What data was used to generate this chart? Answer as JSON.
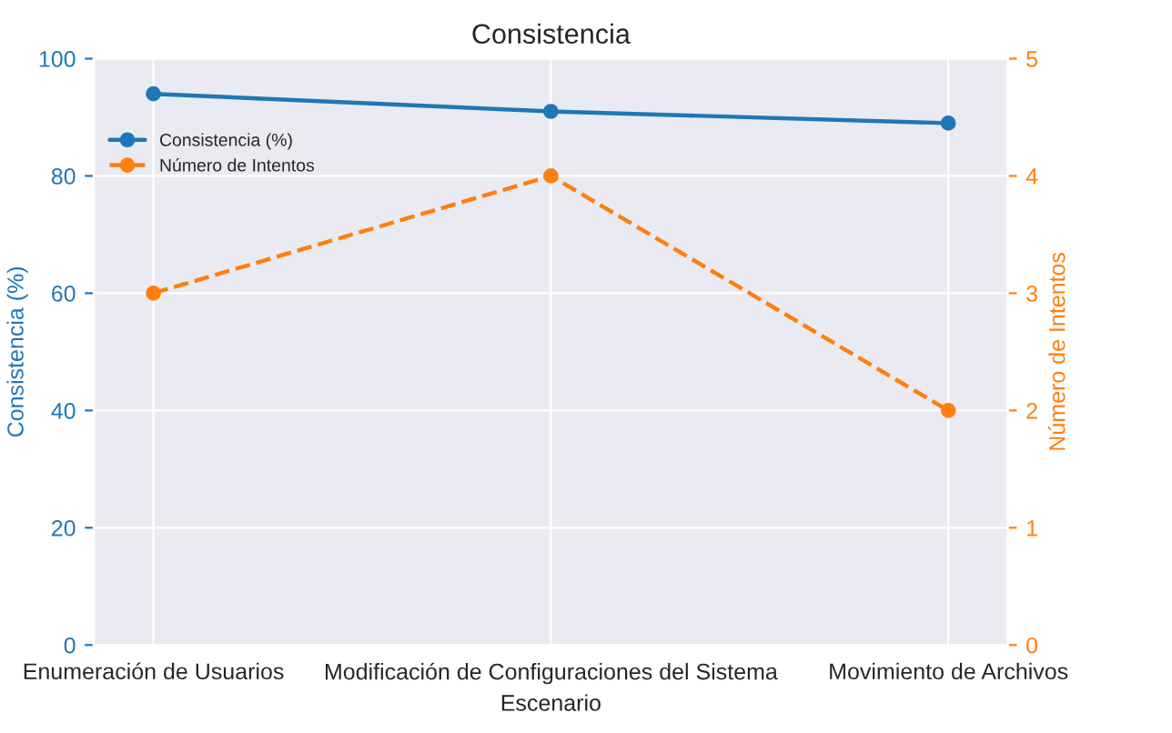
{
  "chart_data": {
    "type": "line",
    "title": "Consistencia",
    "xlabel": "Escenario",
    "ylabel": "Consistencia (%)",
    "y2label": "Número de Intentos",
    "categories": [
      "Enumeración de Usuarios",
      "Modificación de Configuraciones del Sistema",
      "Movimiento de Archivos"
    ],
    "series": [
      {
        "name": "Consistencia (%)",
        "color": "#1f77b4",
        "values": [
          94,
          91,
          89
        ],
        "line_style": "solid"
      },
      {
        "name": "Número de Intentos",
        "color": "#ff7f0e",
        "values": [
          3,
          4,
          2
        ],
        "axis": "y2",
        "line_style": "dashed"
      }
    ],
    "ylim": [
      0,
      100
    ],
    "yticks": [
      0,
      20,
      40,
      60,
      80,
      100
    ],
    "y2lim": [
      0,
      5
    ],
    "y2ticks": [
      0,
      1,
      2,
      3,
      4,
      5
    ],
    "grid": true,
    "legend": "top left",
    "marker": "circle"
  }
}
